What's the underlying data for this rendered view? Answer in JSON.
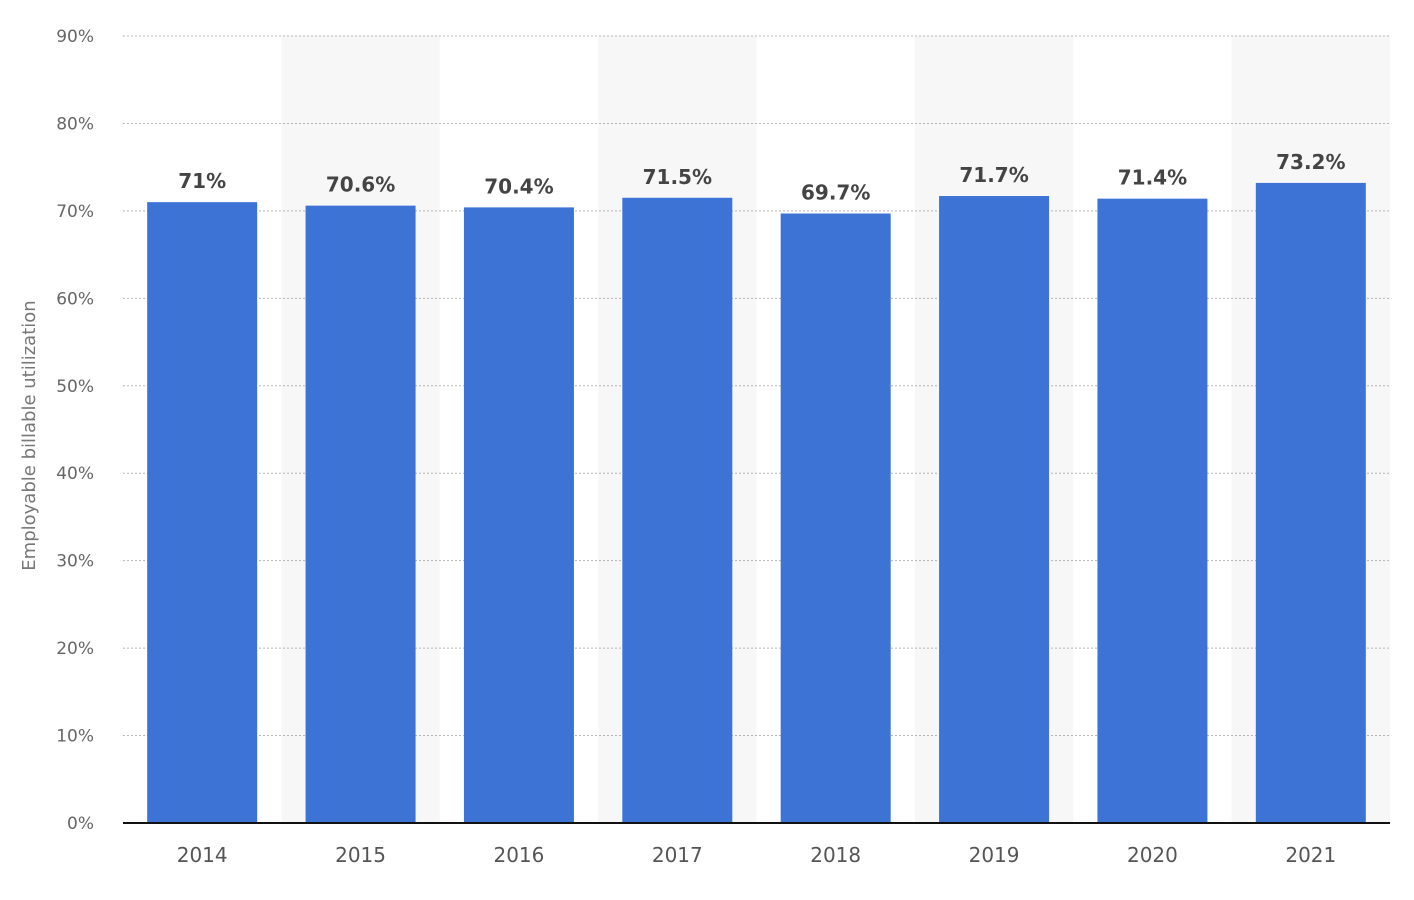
{
  "chart_data": {
    "type": "bar",
    "categories": [
      "2014",
      "2015",
      "2016",
      "2017",
      "2018",
      "2019",
      "2020",
      "2021"
    ],
    "values": [
      71,
      70.6,
      70.4,
      71.5,
      69.7,
      71.7,
      71.4,
      73.2
    ],
    "data_labels": [
      "71%",
      "70.6%",
      "70.4%",
      "71.5%",
      "69.7%",
      "71.7%",
      "71.4%",
      "73.2%"
    ],
    "ylabel": "Employable billable utilization",
    "ylim": [
      0,
      90
    ],
    "yticks": [
      0,
      10,
      20,
      30,
      40,
      50,
      60,
      70,
      80,
      90
    ],
    "ytick_labels": [
      "0%",
      "10%",
      "20%",
      "30%",
      "40%",
      "50%",
      "60%",
      "70%",
      "80%",
      "90%"
    ],
    "grid": true,
    "bar_color": "#3e73d6",
    "alternating_band_color": "#f7f7f7"
  }
}
